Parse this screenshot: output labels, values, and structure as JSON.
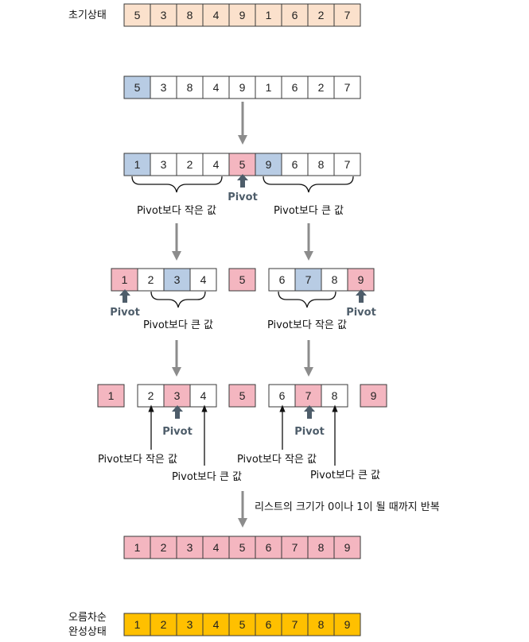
{
  "labels": {
    "initial": "초기상태",
    "final_line1": "오름차순",
    "final_line2": "완성상태",
    "pivot": "Pivot",
    "smaller": "Pivot보다 작은 값",
    "larger": "Pivot보다 큰 값",
    "repeat": "리스트의 크기가 0이나 1이 될 때까지 반복"
  },
  "colors": {
    "peach": "#fbe1cc",
    "blue": "#b8cce4",
    "pink": "#f4b6c0",
    "white": "#ffffff",
    "gold": "#ffc000",
    "arrow_gray": "#8c8c8c",
    "pivot_arrow": "#4e5d6a"
  },
  "rows": {
    "initial": [
      5,
      3,
      8,
      4,
      9,
      1,
      6,
      2,
      7
    ],
    "step1": [
      5,
      3,
      8,
      4,
      9,
      1,
      6,
      2,
      7
    ],
    "step2_left": [
      1,
      3,
      2,
      4
    ],
    "step2_pivot": 5,
    "step2_right": [
      9,
      6,
      8,
      7
    ],
    "step3_left": [
      1,
      2,
      3,
      4
    ],
    "step3_mid": 5,
    "step3_right": [
      6,
      7,
      8,
      9
    ],
    "step4_a": 1,
    "step4_b": [
      2,
      3,
      4
    ],
    "step4_c": 5,
    "step4_d": [
      6,
      7,
      8
    ],
    "step4_e": 9,
    "merged": [
      1,
      2,
      3,
      4,
      5,
      6,
      7,
      8,
      9
    ],
    "final": [
      1,
      2,
      3,
      4,
      5,
      6,
      7,
      8,
      9
    ]
  }
}
